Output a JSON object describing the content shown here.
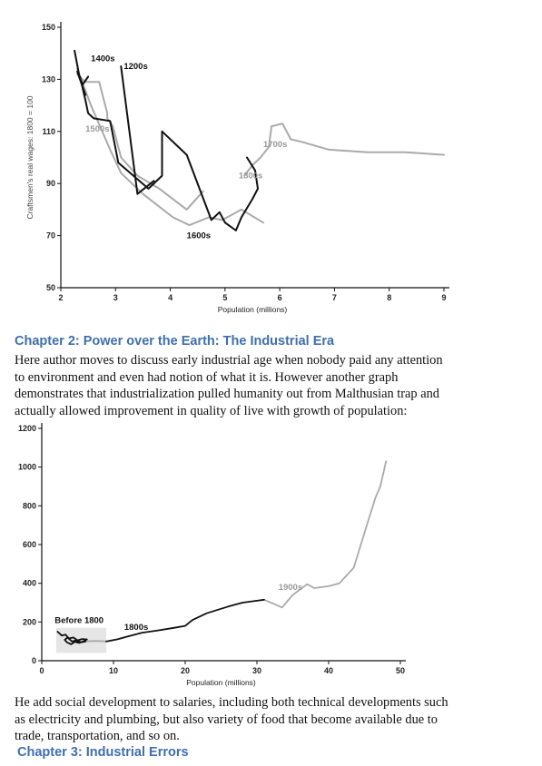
{
  "chart_data": [
    {
      "type": "line",
      "title": "",
      "xlabel": "Population (millions)",
      "ylabel": "Craftsmen's real wages: 1800 = 100",
      "xlim": [
        2,
        9
      ],
      "ylim": [
        50,
        150
      ],
      "x_ticks": [
        2,
        3,
        4,
        5,
        6,
        7,
        8,
        9
      ],
      "y_ticks": [
        50,
        70,
        90,
        110,
        130,
        150
      ],
      "grid": false,
      "series": [
        {
          "name": "1200s",
          "color": "#111111",
          "label_at": [
            3.15,
            134
          ],
          "x": [
            3.1,
            3.4,
            3.7
          ],
          "y": [
            135,
            86,
            91
          ]
        },
        {
          "name": "1300s",
          "color": "#aaaaaa",
          "label_at": [
            5.25,
            92
          ],
          "x": [
            5.7,
            5.3,
            4.95,
            4.7,
            4.35,
            4.05,
            3.5,
            3.1,
            2.9,
            2.55,
            2.3
          ],
          "y": [
            75,
            80,
            76,
            77,
            74,
            77,
            86,
            94,
            103,
            120,
            134
          ]
        },
        {
          "name": "1400s",
          "color": "#111111",
          "label_at": [
            2.55,
            137
          ],
          "x": [
            2.25,
            2.35,
            2.45,
            2.3,
            2.4,
            2.5
          ],
          "y": [
            141,
            130,
            124,
            133,
            128,
            131
          ]
        },
        {
          "name": "1500s",
          "color": "#aaaaaa",
          "label_at": [
            2.45,
            110
          ],
          "x": [
            2.3,
            2.45,
            2.7,
            2.85,
            2.85,
            2.95,
            3.1,
            3.4,
            3.8,
            4.3,
            4.6
          ],
          "y": [
            132,
            129,
            129,
            117,
            115,
            112,
            100,
            93,
            88,
            80,
            87
          ]
        },
        {
          "name": "1600s",
          "color": "#111111",
          "label_at": [
            4.3,
            69
          ],
          "x": [
            2.35,
            2.45,
            2.5,
            2.6,
            2.9,
            3.05,
            3.6,
            3.85,
            3.85,
            4.3,
            4.75,
            4.9,
            5.0,
            5.2,
            5.3,
            5.5,
            5.6,
            5.55,
            5.4
          ],
          "y": [
            131,
            122,
            117,
            115,
            114,
            98,
            88,
            93,
            110,
            101,
            76,
            79,
            75,
            72,
            77,
            84,
            88,
            95,
            100
          ]
        },
        {
          "name": "1700s",
          "color": "#aaaaaa",
          "label_at": [
            5.7,
            104
          ],
          "x": [
            5.35,
            5.5,
            5.65,
            5.8,
            5.85,
            6.05,
            6.2,
            6.4,
            6.9,
            7.6,
            8.3,
            9.0
          ],
          "y": [
            93,
            97,
            100,
            104,
            112,
            113,
            107,
            106,
            103,
            102,
            102,
            101
          ]
        }
      ]
    },
    {
      "type": "line",
      "title": "",
      "xlabel": "Population (millions)",
      "ylabel": "",
      "xlim": [
        0,
        50
      ],
      "ylim": [
        0,
        1200
      ],
      "x_ticks": [
        0,
        10,
        20,
        30,
        40,
        50
      ],
      "y_ticks": [
        0,
        200,
        400,
        600,
        800,
        1000,
        1200
      ],
      "grid": false,
      "highlight_box": {
        "label": "Before 1800",
        "x": [
          2,
          9
        ],
        "y": [
          40,
          170
        ]
      },
      "series": [
        {
          "name": "Before 1800",
          "color": "#111111",
          "label_at": [
            1.8,
            195
          ],
          "x": [
            2.2,
            2.8,
            3.3,
            3.8,
            4.4,
            5.0,
            5.6,
            6.3,
            5.8,
            5.2,
            4.6,
            4.1,
            3.5,
            3.2,
            3.6,
            4.2,
            4.8,
            5.5,
            6.1
          ],
          "y": [
            150,
            130,
            135,
            115,
            120,
            105,
            112,
            110,
            100,
            92,
            98,
            85,
            95,
            108,
            120,
            100,
            105,
            95,
            100
          ]
        },
        {
          "name": "",
          "color": "#aaaaaa",
          "x": [
            6.1,
            7.5,
            9.0
          ],
          "y": [
            100,
            102,
            100
          ]
        },
        {
          "name": "1800s",
          "color": "#111111",
          "label_at": [
            11.5,
            160
          ],
          "x": [
            9.0,
            10.5,
            12.0,
            14.0,
            16.0,
            18.5,
            20.0,
            21.0,
            23.0,
            26.0,
            28.0,
            30.0,
            31.0
          ],
          "y": [
            100,
            110,
            125,
            145,
            155,
            170,
            180,
            210,
            245,
            280,
            300,
            310,
            315
          ]
        },
        {
          "name": "1900s",
          "color": "#aaaaaa",
          "label_at": [
            33.0,
            365
          ],
          "x": [
            31.0,
            33.5,
            35.0,
            37.0,
            38.0,
            40.0,
            41.5,
            43.5,
            45.5,
            46.5,
            47.2,
            48.0
          ],
          "y": [
            315,
            275,
            340,
            395,
            375,
            385,
            400,
            480,
            720,
            840,
            900,
            1030
          ]
        }
      ]
    }
  ],
  "text": {
    "chapter2_heading": "Chapter 2: Power over the Earth: The Industrial Era",
    "chapter2_para": [
      "Here author moves to discuss early industrial age when nobody paid any attention",
      "to environment and even had notion of what it is. However another graph",
      "demonstrates that industrialization pulled humanity out from Malthusian trap and",
      "actually allowed improvement in quality of live with growth of population:"
    ],
    "social_para": [
      "He add social development to salaries, including both technical developments such",
      "as electricity and plumbing, but also variety of food that become available due to",
      "trade, transportation, and so on."
    ],
    "chapter3_heading": "Chapter 3: Industrial Errors"
  },
  "colors": {
    "heading": "#3f6fae",
    "series_dark": "#111111",
    "series_light": "#aaaaaa",
    "highlight_box": "#e6e6e6"
  }
}
